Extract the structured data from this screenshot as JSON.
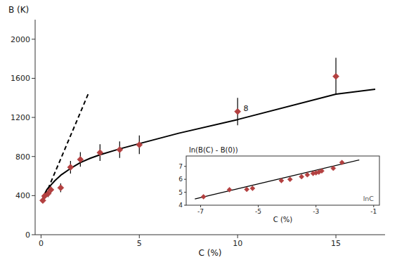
{
  "chart_data": [
    {
      "type": "line",
      "x_label": "C (%)",
      "y_label": "B (K)",
      "xlim": [
        -0.3,
        17.5
      ],
      "ylim": [
        0,
        2200
      ],
      "xticks": [
        0,
        5,
        10,
        15
      ],
      "yticks": [
        0,
        400,
        800,
        1200,
        1600,
        2000
      ],
      "grid": false,
      "annotations": [
        {
          "text": "8",
          "x": 10.3,
          "y": 1265
        }
      ],
      "series": [
        {
          "type": "line",
          "line_style": "solid",
          "color": "#000000",
          "x": [
            0.05,
            0.1,
            0.2,
            0.3,
            0.5,
            0.7,
            1.0,
            1.5,
            2.0,
            2.5,
            3.0,
            4.0,
            5.0,
            7.0,
            10.0,
            15.0,
            17.0
          ],
          "values": [
            330,
            375,
            425,
            462,
            508,
            552,
            608,
            678,
            738,
            782,
            818,
            878,
            932,
            1038,
            1178,
            1438,
            1488
          ]
        },
        {
          "type": "line",
          "line_style": "dashed",
          "color": "#000000",
          "x": [
            0.05,
            0.4,
            0.8,
            1.2,
            1.6,
            2.0,
            2.4
          ],
          "values": [
            340,
            490,
            680,
            870,
            1060,
            1250,
            1440
          ]
        },
        {
          "type": "scatter",
          "marker": "diamond",
          "color": "#b34040",
          "x": [
            0.09,
            0.18,
            0.36,
            0.5,
            1.0,
            1.5,
            2.0,
            3.0,
            4.0,
            5.0,
            10.0,
            15.0
          ],
          "values": [
            350,
            395,
            420,
            460,
            480,
            690,
            770,
            840,
            870,
            920,
            1260,
            1620
          ],
          "errors": [
            25,
            30,
            35,
            35,
            45,
            65,
            75,
            85,
            85,
            95,
            140,
            190
          ]
        }
      ]
    },
    {
      "type": "scatter",
      "x_label": "C (%)",
      "y_label": "ln(B(C) - B(0))",
      "xlim": [
        -7.5,
        -0.8
      ],
      "ylim": [
        4.0,
        7.8
      ],
      "xticks": [
        -7,
        -5,
        -3,
        -1
      ],
      "yticks": [
        4,
        5,
        6,
        7
      ],
      "grid": false,
      "annotations": [
        {
          "text": "lnC"
        }
      ],
      "series": [
        {
          "type": "line",
          "line_style": "solid",
          "color": "#000000",
          "x": [
            -7.2,
            -1.5
          ],
          "values": [
            4.48,
            7.5
          ]
        },
        {
          "type": "scatter",
          "marker": "diamond",
          "color": "#b34040",
          "x": [
            -6.9,
            -6.0,
            -5.4,
            -5.2,
            -4.2,
            -3.9,
            -3.5,
            -3.3,
            -3.1,
            -3.0,
            -2.9,
            -2.8,
            -2.4,
            -2.1
          ],
          "values": [
            4.65,
            5.2,
            5.22,
            5.3,
            5.9,
            6.0,
            6.2,
            6.35,
            6.45,
            6.5,
            6.55,
            6.65,
            6.85,
            7.3
          ]
        }
      ]
    }
  ]
}
